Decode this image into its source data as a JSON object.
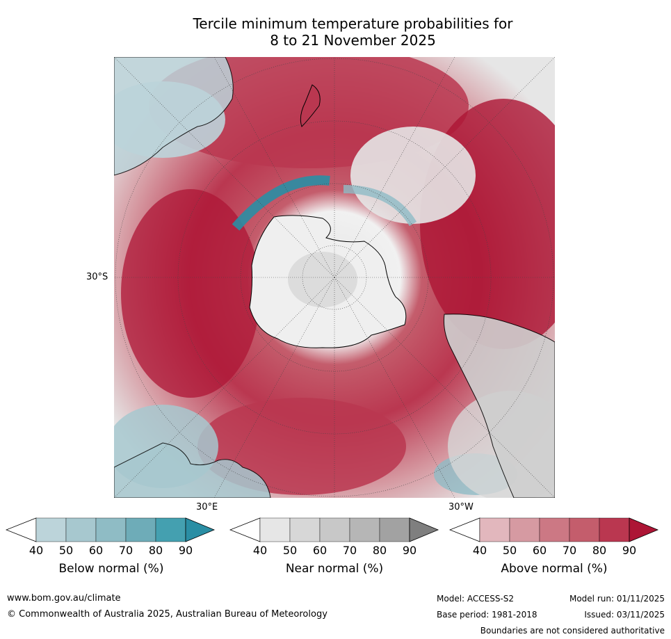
{
  "title_line1": "Tercile minimum temperature probabilities for",
  "title_line2": "8 to 21 November 2025",
  "map_labels": {
    "lat_30s": "30°S",
    "lon_30e": "30°E",
    "lon_30w": "30°W"
  },
  "colorbars": [
    {
      "label": "Below normal (%)",
      "ticks": [
        "40",
        "50",
        "60",
        "70",
        "80",
        "90"
      ],
      "colors": [
        "#ffffff",
        "#bcd4da",
        "#a7c8cf",
        "#8fbcc5",
        "#6eacb8",
        "#44a0b0",
        "#2a8ea4"
      ]
    },
    {
      "label": "Near normal (%)",
      "ticks": [
        "40",
        "50",
        "60",
        "70",
        "80",
        "90"
      ],
      "colors": [
        "#ffffff",
        "#e6e6e6",
        "#d7d7d7",
        "#c8c8c8",
        "#b6b6b6",
        "#a2a2a2",
        "#7f7f7f"
      ]
    },
    {
      "label": "Above normal (%)",
      "ticks": [
        "40",
        "50",
        "60",
        "70",
        "80",
        "90"
      ],
      "colors": [
        "#ffffff",
        "#e2b7bd",
        "#d69aa2",
        "#cc7884",
        "#c45d6c",
        "#ba3750",
        "#ad1535"
      ]
    }
  ],
  "footer": {
    "website": "www.bom.gov.au/climate",
    "copyright": "© Commonwealth of Australia 2025, Australian Bureau of Meteorology",
    "model": "Model: ACCESS-S2",
    "base_period": "Base period: 1981-2018",
    "model_run": "Model run: 01/11/2025",
    "issued": "Issued: 03/11/2025",
    "disclaimer": "Boundaries are not considered authoritative"
  }
}
